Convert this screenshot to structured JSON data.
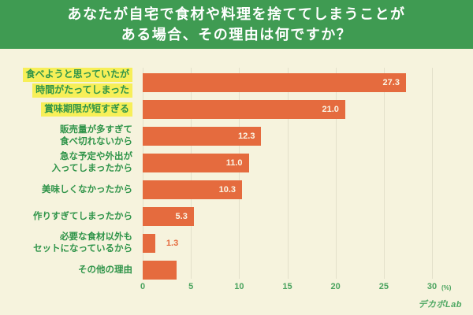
{
  "header": {
    "title_line1": "あなたが自宅で食材や料理を捨ててしまうことが",
    "title_line2": "ある場合、その理由は何ですか？"
  },
  "chart_data": {
    "type": "bar",
    "orientation": "horizontal",
    "title": "あなたが自宅で食材や料理を捨ててしまうことがある場合、その理由は何ですか？",
    "xlabel": "(%)",
    "ylabel": "",
    "xlim": [
      0,
      30
    ],
    "x_ticks": [
      0,
      5,
      10,
      15,
      20,
      25,
      30
    ],
    "grid": true,
    "unit_label": "(%)",
    "categories": [
      "食べようと思っていたが時間がたってしまった",
      "賞味期限が短すぎる",
      "販売量が多すぎて食べ切れないから",
      "急な予定や外出が入ってしまったから",
      "美味しくなかったから",
      "作りすぎてしまったから",
      "必要な食材以外もセットになっているから",
      "その他の理由"
    ],
    "values": [
      27.3,
      21.0,
      12.3,
      11.0,
      10.3,
      5.3,
      1.3,
      3.5
    ],
    "bars": [
      {
        "label_lines": [
          "食べようと思っていたが",
          "時間がたってしまった"
        ],
        "value": 27.3,
        "value_label": "27.3",
        "highlighted": true,
        "value_label_position": "inside"
      },
      {
        "label_lines": [
          "賞味期限が短すぎる"
        ],
        "value": 21.0,
        "value_label": "21.0",
        "highlighted": true,
        "value_label_position": "inside"
      },
      {
        "label_lines": [
          "販売量が多すぎて",
          "食べ切れないから"
        ],
        "value": 12.3,
        "value_label": "12.3",
        "highlighted": false,
        "value_label_position": "inside"
      },
      {
        "label_lines": [
          "急な予定や外出が",
          "入ってしまったから"
        ],
        "value": 11.0,
        "value_label": "11.0",
        "highlighted": false,
        "value_label_position": "inside"
      },
      {
        "label_lines": [
          "美味しくなかったから"
        ],
        "value": 10.3,
        "value_label": "10.3",
        "highlighted": false,
        "value_label_position": "inside"
      },
      {
        "label_lines": [
          "作りすぎてしまったから"
        ],
        "value": 5.3,
        "value_label": "5.3",
        "highlighted": false,
        "value_label_position": "inside"
      },
      {
        "label_lines": [
          "必要な食材以外も",
          "セットになっているから"
        ],
        "value": 1.3,
        "value_label": "1.3",
        "highlighted": false,
        "value_label_position": "outside"
      },
      {
        "label_lines": [
          "その他の理由"
        ],
        "value": 3.5,
        "value_label": "",
        "highlighted": false,
        "value_label_position": "none"
      }
    ],
    "colors": {
      "background": "#f6f3dd",
      "header_bg": "#3f9b52",
      "header_text": "#ffffff",
      "bar": "#e56b3e",
      "bar_value_text": "#faf6e6",
      "outside_value_text": "#e56b3e",
      "label_text": "#2f9449",
      "highlight_bg": "#f7ef58",
      "axis_text": "#4aa35e",
      "gridline": "#e3e0ca",
      "logo_text": "#4ea863"
    },
    "legend": null
  },
  "footer": {
    "logo": "デカボLab"
  }
}
